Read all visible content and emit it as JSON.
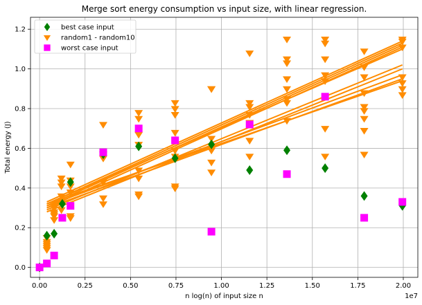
{
  "chart_data": {
    "type": "scatter",
    "title": "Merge sort energy consumption vs input size, with linear regression.",
    "xlabel": "n log(n) of input size n",
    "ylabel": "Total energy (J)",
    "x_multiplier_label": "1e7",
    "xlim": [
      -0.05,
      2.08
    ],
    "ylim": [
      -0.05,
      1.26
    ],
    "x_ticks": [
      0.0,
      0.25,
      0.5,
      0.75,
      1.0,
      1.25,
      1.5,
      1.75,
      2.0
    ],
    "x_tick_labels": [
      "0.00",
      "0.25",
      "0.50",
      "0.75",
      "1.00",
      "1.25",
      "1.50",
      "1.75",
      "2.00"
    ],
    "y_ticks": [
      0.0,
      0.2,
      0.4,
      0.6,
      0.8,
      1.0,
      1.2
    ],
    "y_tick_labels": [
      "0.0",
      "0.2",
      "0.4",
      "0.6",
      "0.8",
      "1.0",
      "1.2"
    ],
    "grid": true,
    "legend_position": "top-left",
    "colors": {
      "best": "#008000",
      "random": "#ff8c00",
      "worst": "#ff00ff",
      "grid": "#b0b0b0"
    },
    "series": [
      {
        "name": "best case input",
        "marker": "diamond",
        "x": [
          0.0,
          0.04,
          0.08,
          0.125,
          0.17,
          0.35,
          0.545,
          0.745,
          0.945,
          1.155,
          1.36,
          1.57,
          1.785,
          1.995
        ],
        "y": [
          0.0,
          0.16,
          0.17,
          0.32,
          0.43,
          0.57,
          0.61,
          0.55,
          0.62,
          0.49,
          0.59,
          0.5,
          0.36,
          0.31
        ]
      },
      {
        "name": "random1 - random10",
        "marker": "triangle-down",
        "x": [
          0.04,
          0.04,
          0.04,
          0.04,
          0.04,
          0.04,
          0.08,
          0.08,
          0.08,
          0.08,
          0.08,
          0.08,
          0.12,
          0.12,
          0.12,
          0.12,
          0.12,
          0.12,
          0.17,
          0.17,
          0.17,
          0.17,
          0.17,
          0.17,
          0.35,
          0.35,
          0.35,
          0.35,
          0.35,
          0.35,
          0.545,
          0.545,
          0.545,
          0.545,
          0.545,
          0.545,
          0.545,
          0.545,
          0.745,
          0.745,
          0.745,
          0.745,
          0.745,
          0.745,
          0.745,
          0.745,
          0.945,
          0.945,
          0.945,
          0.945,
          0.945,
          0.945,
          1.155,
          1.155,
          1.155,
          1.155,
          1.155,
          1.155,
          1.155,
          1.36,
          1.36,
          1.36,
          1.36,
          1.36,
          1.36,
          1.36,
          1.36,
          1.57,
          1.57,
          1.57,
          1.57,
          1.57,
          1.57,
          1.57,
          1.785,
          1.785,
          1.785,
          1.785,
          1.785,
          1.785,
          1.785,
          1.785,
          1.785,
          1.995,
          1.995,
          1.995,
          1.995,
          1.995,
          1.995,
          1.995
        ],
        "y": [
          0.09,
          0.11,
          0.12,
          0.1,
          0.15,
          0.13,
          0.24,
          0.26,
          0.28,
          0.3,
          0.31,
          0.27,
          0.29,
          0.33,
          0.36,
          0.41,
          0.43,
          0.45,
          0.25,
          0.26,
          0.38,
          0.41,
          0.44,
          0.52,
          0.32,
          0.35,
          0.43,
          0.55,
          0.57,
          0.72,
          0.36,
          0.37,
          0.45,
          0.49,
          0.62,
          0.67,
          0.75,
          0.78,
          0.4,
          0.41,
          0.59,
          0.68,
          0.77,
          0.8,
          0.83,
          0.56,
          0.48,
          0.53,
          0.59,
          0.65,
          0.9,
          0.9,
          0.56,
          0.64,
          0.73,
          0.77,
          0.81,
          0.83,
          1.08,
          0.74,
          0.83,
          0.85,
          0.9,
          0.95,
          1.03,
          1.05,
          1.15,
          0.56,
          0.7,
          0.94,
          0.97,
          1.05,
          1.13,
          1.15,
          0.57,
          0.69,
          0.75,
          0.79,
          0.81,
          0.88,
          0.96,
          1.01,
          1.09,
          0.87,
          0.9,
          0.93,
          0.96,
          1.11,
          1.14,
          1.15
        ]
      },
      {
        "name": "worst case input",
        "marker": "square",
        "x": [
          0.0,
          0.04,
          0.08,
          0.125,
          0.17,
          0.35,
          0.545,
          0.745,
          0.945,
          1.155,
          1.36,
          1.57,
          1.785,
          1.995
        ],
        "y": [
          0.0,
          0.02,
          0.06,
          0.25,
          0.31,
          0.58,
          0.7,
          0.64,
          0.18,
          0.72,
          0.47,
          0.86,
          0.25,
          0.33
        ]
      }
    ],
    "regression_lines": [
      {
        "x": [
          0.04,
          1.995
        ],
        "y": [
          0.33,
          1.14
        ]
      },
      {
        "x": [
          0.04,
          1.995
        ],
        "y": [
          0.32,
          1.13
        ]
      },
      {
        "x": [
          0.04,
          1.995
        ],
        "y": [
          0.31,
          1.12
        ]
      },
      {
        "x": [
          0.04,
          1.995
        ],
        "y": [
          0.3,
          1.11
        ]
      },
      {
        "x": [
          0.04,
          1.995
        ],
        "y": [
          0.32,
          1.1
        ]
      },
      {
        "x": [
          0.04,
          1.995
        ],
        "y": [
          0.29,
          1.02
        ]
      },
      {
        "x": [
          0.04,
          1.995
        ],
        "y": [
          0.28,
          1.0
        ]
      },
      {
        "x": [
          0.04,
          1.995
        ],
        "y": [
          0.31,
          0.97
        ]
      },
      {
        "x": [
          0.04,
          1.995
        ],
        "y": [
          0.3,
          0.95
        ]
      },
      {
        "x": [
          0.04,
          1.995
        ],
        "y": [
          0.32,
          0.94
        ]
      }
    ]
  }
}
